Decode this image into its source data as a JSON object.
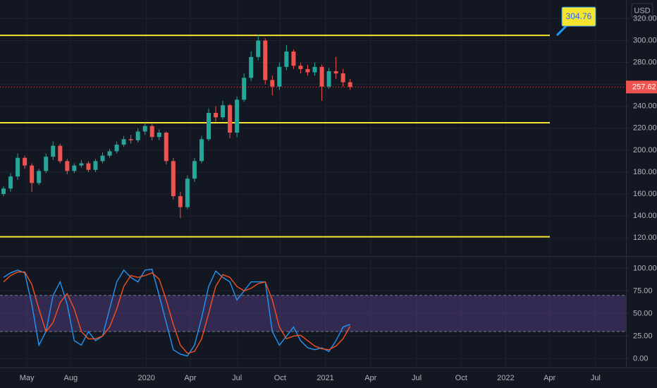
{
  "chart_data": [
    {
      "type": "candlestick",
      "currency": "USD",
      "categories": [
        null,
        null,
        null,
        null,
        null,
        null,
        null,
        null,
        null,
        null,
        null,
        null,
        null,
        null,
        null,
        null,
        null,
        null,
        null,
        null,
        null,
        null,
        null,
        null,
        null,
        null,
        null,
        null,
        null,
        null,
        null,
        null,
        null,
        null,
        null,
        null,
        null,
        null,
        null,
        null,
        null,
        null,
        null,
        null,
        null,
        null,
        null,
        null,
        null,
        null
      ],
      "open": [
        160,
        165,
        176,
        193,
        186,
        170,
        181,
        194,
        204,
        190,
        181,
        186,
        188,
        182,
        190,
        195,
        199,
        205,
        210,
        209,
        217,
        222,
        212,
        216,
        190,
        158,
        148,
        174,
        190,
        210,
        234,
        230,
        241,
        216,
        246,
        266,
        285,
        300,
        264,
        258,
        276,
        290,
        277,
        274,
        271,
        276,
        258,
        272,
        270,
        262
      ],
      "high": [
        167,
        179,
        197,
        195,
        188,
        183,
        197,
        208,
        206,
        192,
        188,
        191,
        190,
        192,
        198,
        201,
        208,
        213,
        214,
        220,
        225,
        224,
        219,
        217,
        193,
        162,
        177,
        193,
        213,
        238,
        240,
        245,
        242,
        249,
        270,
        290,
        305,
        302,
        268,
        280,
        296,
        292,
        280,
        278,
        280,
        278,
        275,
        285,
        274,
        265
      ],
      "low": [
        158,
        162,
        173,
        183,
        162,
        168,
        179,
        191,
        188,
        178,
        179,
        184,
        180,
        180,
        188,
        193,
        197,
        203,
        206,
        207,
        214,
        209,
        209,
        187,
        155,
        138,
        146,
        171,
        188,
        208,
        226,
        228,
        211,
        212,
        244,
        263,
        282,
        260,
        250,
        255,
        273,
        274,
        270,
        268,
        268,
        245,
        256,
        265,
        258,
        255
      ],
      "close": [
        165,
        176,
        193,
        186,
        170,
        181,
        194,
        204,
        190,
        181,
        186,
        188,
        182,
        190,
        195,
        199,
        205,
        210,
        209,
        217,
        222,
        212,
        216,
        190,
        158,
        148,
        174,
        190,
        210,
        234,
        230,
        241,
        216,
        246,
        266,
        285,
        300,
        264,
        258,
        276,
        290,
        277,
        274,
        271,
        276,
        258,
        272,
        270,
        262,
        257.62
      ],
      "up_color": "#26a69a",
      "down_color": "#ef5350",
      "levels": [
        304.76,
        225,
        121
      ],
      "level_color": "#f5e52f",
      "last_price": 257.62,
      "xlim": [
        -0.5,
        88
      ],
      "ylim": [
        104,
        337
      ],
      "yticks": [
        {
          "value": 120,
          "label": "120.00"
        },
        {
          "value": 140,
          "label": "140.00"
        },
        {
          "value": 160,
          "label": "160.00"
        },
        {
          "value": 180,
          "label": "180.00"
        },
        {
          "value": 200,
          "label": "200.00"
        },
        {
          "value": 220,
          "label": "220.00"
        },
        {
          "value": 240,
          "label": "240.00"
        },
        {
          "value": 260,
          "label": "260.00"
        },
        {
          "value": 280,
          "label": "280.00"
        },
        {
          "value": 300,
          "label": "300.00"
        },
        {
          "value": 320,
          "label": "320.00"
        }
      ],
      "grid": true
    },
    {
      "type": "line",
      "categories": [
        null,
        null,
        null,
        null,
        null,
        null,
        null,
        null,
        null,
        null,
        null,
        null,
        null,
        null,
        null,
        null,
        null,
        null,
        null,
        null,
        null,
        null,
        null,
        null,
        null,
        null,
        null,
        null,
        null,
        null,
        null,
        null,
        null,
        null,
        null,
        null,
        null,
        null,
        null,
        null,
        null,
        null,
        null,
        null,
        null,
        null,
        null,
        null,
        null,
        null
      ],
      "series": [
        {
          "color": "#2196f3",
          "values": [
            90,
            95,
            98,
            95,
            60,
            15,
            30,
            70,
            85,
            60,
            20,
            15,
            30,
            20,
            25,
            55,
            85,
            98,
            90,
            85,
            98,
            99,
            70,
            40,
            10,
            5,
            3,
            15,
            45,
            80,
            97,
            90,
            85,
            65,
            75,
            85,
            85,
            85,
            30,
            15,
            25,
            35,
            20,
            12,
            10,
            12,
            8,
            20,
            35,
            38
          ]
        },
        {
          "color": "#f4511e",
          "values": [
            85,
            92,
            96,
            96,
            82,
            55,
            30,
            40,
            62,
            72,
            55,
            30,
            22,
            22,
            25,
            35,
            55,
            80,
            92,
            90,
            92,
            95,
            88,
            65,
            38,
            15,
            6,
            8,
            22,
            50,
            80,
            93,
            90,
            80,
            75,
            78,
            83,
            85,
            65,
            35,
            22,
            25,
            26,
            20,
            14,
            11,
            10,
            14,
            22,
            36
          ]
        }
      ],
      "bands": [
        30,
        70
      ],
      "band_color": "#7e57c2",
      "xlim": [
        -0.5,
        88
      ],
      "ylim": [
        -9,
        112
      ],
      "yticks": [
        {
          "value": 0,
          "label": "0.00"
        },
        {
          "value": 25,
          "label": "25.00"
        },
        {
          "value": 50,
          "label": "50.00"
        },
        {
          "value": 75,
          "label": "75.00"
        },
        {
          "value": 100,
          "label": "100.00"
        }
      ],
      "xticks": [
        {
          "value": 3.3,
          "label": "May"
        },
        {
          "value": 9.5,
          "label": "Aug"
        },
        {
          "value": 20.2,
          "label": "2020"
        },
        {
          "value": 26.4,
          "label": "Apr"
        },
        {
          "value": 33,
          "label": "Jul"
        },
        {
          "value": 39.1,
          "label": "Oct"
        },
        {
          "value": 45.5,
          "label": "2021"
        },
        {
          "value": 51.9,
          "label": "Apr"
        },
        {
          "value": 58.4,
          "label": "Jul"
        },
        {
          "value": 64.7,
          "label": "Oct"
        },
        {
          "value": 71,
          "label": "2022"
        },
        {
          "value": 77.2,
          "label": "Apr"
        },
        {
          "value": 83.7,
          "label": "Jul"
        }
      ],
      "grid": true
    }
  ]
}
